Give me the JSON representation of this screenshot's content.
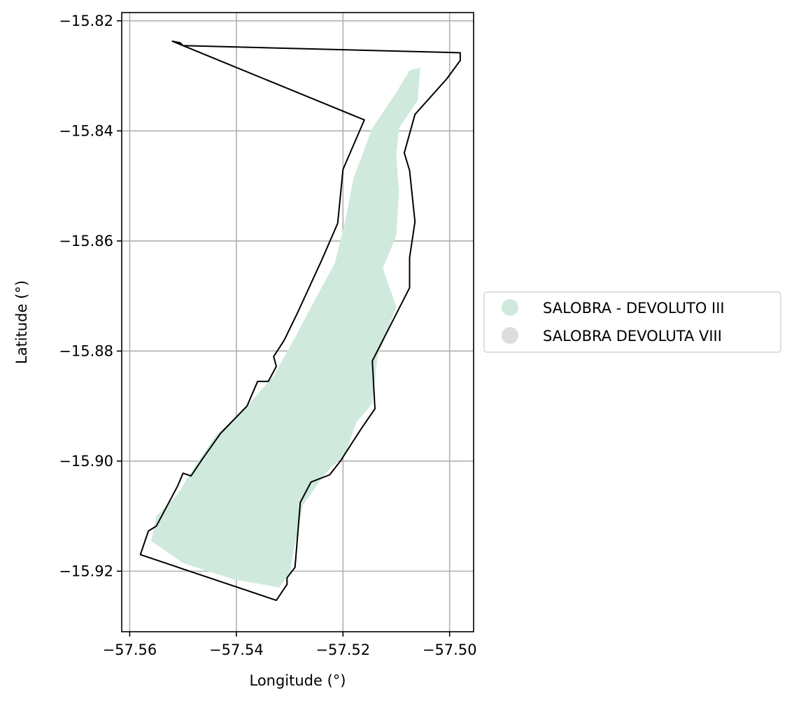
{
  "chart_data": {
    "type": "map",
    "xlabel": "Longitude (°)",
    "ylabel": "Latitude (°)",
    "xlim": [
      -57.5615,
      -57.4955
    ],
    "ylim": [
      -15.931,
      -15.8185
    ],
    "xticks": [
      -57.56,
      -57.54,
      -57.52,
      -57.5
    ],
    "xtick_labels": [
      "−57.56",
      "−57.54",
      "−57.52",
      "−57.50"
    ],
    "yticks": [
      -15.82,
      -15.84,
      -15.86,
      -15.88,
      -15.9,
      -15.92
    ],
    "ytick_labels": [
      "−15.82",
      "−15.84",
      "−15.86",
      "−15.88",
      "−15.90",
      "−15.92"
    ],
    "grid": true,
    "legend_position": "right",
    "legend": [
      {
        "label": "SALOBRA - DEVOLUTO III",
        "color": "#cfeadd"
      },
      {
        "label": "SALOBRA DEVOLUTA VIII",
        "color": "#dddddd"
      }
    ],
    "fill_color": "#cfeadd",
    "outline_color": "#000000",
    "outline_polygon": [
      [
        -57.552,
        -15.8237
      ],
      [
        -57.5505,
        -15.824
      ],
      [
        -57.55,
        -15.8245
      ],
      [
        -57.498,
        -15.8258
      ],
      [
        -57.498,
        -15.8272
      ],
      [
        -57.5005,
        -15.8305
      ],
      [
        -57.5065,
        -15.837
      ],
      [
        -57.5085,
        -15.844
      ],
      [
        -57.5075,
        -15.8472
      ],
      [
        -57.5065,
        -15.8565
      ],
      [
        -57.5075,
        -15.863
      ],
      [
        -57.5075,
        -15.8685
      ],
      [
        -57.5145,
        -15.8818
      ],
      [
        -57.514,
        -15.8905
      ],
      [
        -57.5165,
        -15.894
      ],
      [
        -57.5185,
        -15.897
      ],
      [
        -57.5205,
        -15.9
      ],
      [
        -57.5225,
        -15.9025
      ],
      [
        -57.526,
        -15.9038
      ],
      [
        -57.528,
        -15.9075
      ],
      [
        -57.529,
        -15.9193
      ],
      [
        -57.5305,
        -15.9212
      ],
      [
        -57.5305,
        -15.9224
      ],
      [
        -57.5325,
        -15.9253
      ],
      [
        -57.558,
        -15.917
      ],
      [
        -57.5565,
        -15.9127
      ],
      [
        -57.555,
        -15.9118
      ],
      [
        -57.551,
        -15.9045
      ],
      [
        -57.55,
        -15.9022
      ],
      [
        -57.5485,
        -15.9027
      ],
      [
        -57.5465,
        -15.8998
      ],
      [
        -57.543,
        -15.895
      ],
      [
        -57.538,
        -15.89
      ],
      [
        -57.536,
        -15.8855
      ],
      [
        -57.534,
        -15.8855
      ],
      [
        -57.5325,
        -15.8828
      ],
      [
        -57.533,
        -15.881
      ],
      [
        -57.531,
        -15.878
      ],
      [
        -57.5285,
        -15.873
      ],
      [
        -57.524,
        -15.8635
      ],
      [
        -57.521,
        -15.8568
      ],
      [
        -57.52,
        -15.847
      ],
      [
        -57.516,
        -15.838
      ]
    ],
    "filled_polygon": [
      [
        -57.5055,
        -15.8285
      ],
      [
        -57.506,
        -15.8345
      ],
      [
        -57.5095,
        -15.8395
      ],
      [
        -57.51,
        -15.8445
      ],
      [
        -57.5095,
        -15.851
      ],
      [
        -57.51,
        -15.859
      ],
      [
        -57.5125,
        -15.865
      ],
      [
        -57.51,
        -15.872
      ],
      [
        -57.5135,
        -15.881
      ],
      [
        -57.5145,
        -15.8895
      ],
      [
        -57.5175,
        -15.893
      ],
      [
        -57.5195,
        -15.8985
      ],
      [
        -57.5235,
        -15.9025
      ],
      [
        -57.5275,
        -15.908
      ],
      [
        -57.529,
        -15.915
      ],
      [
        -57.53,
        -15.9205
      ],
      [
        -57.532,
        -15.923
      ],
      [
        -57.5345,
        -15.9225
      ],
      [
        -57.5405,
        -15.9215
      ],
      [
        -57.55,
        -15.9185
      ],
      [
        -57.556,
        -15.9145
      ],
      [
        -57.555,
        -15.91
      ],
      [
        -57.551,
        -15.906
      ],
      [
        -57.5475,
        -15.9005
      ],
      [
        -57.544,
        -15.8955
      ],
      [
        -57.538,
        -15.89
      ],
      [
        -57.533,
        -15.8845
      ],
      [
        -57.529,
        -15.8775
      ],
      [
        -57.526,
        -15.872
      ],
      [
        -57.5215,
        -15.864
      ],
      [
        -57.5195,
        -15.856
      ],
      [
        -57.518,
        -15.8485
      ],
      [
        -57.5145,
        -15.8395
      ],
      [
        -57.51,
        -15.833
      ],
      [
        -57.5075,
        -15.829
      ]
    ]
  }
}
